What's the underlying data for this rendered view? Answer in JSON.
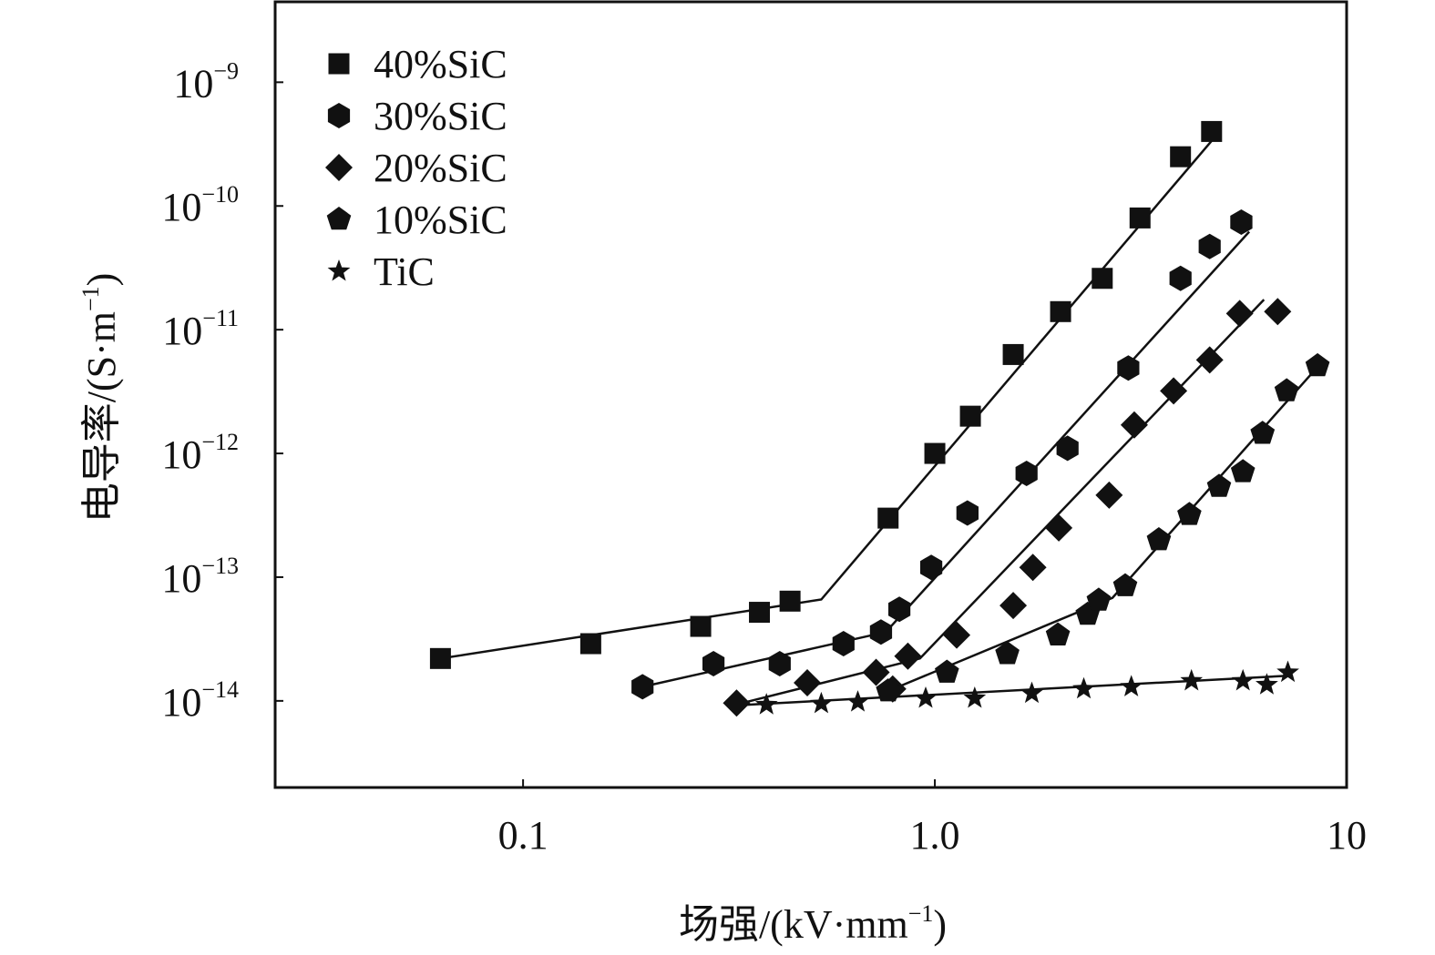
{
  "chart_data": {
    "type": "scatter",
    "x_scale": "log",
    "y_scale": "log",
    "xlim": [
      0.025,
      10
    ],
    "ylim_log10": [
      -14.7,
      -8.35
    ],
    "xlabel": {
      "base": "场强/(kV·mm",
      "exp": "−1",
      "close": ")"
    },
    "ylabel": {
      "base": "电导率/(S·m",
      "exp": "−1",
      "close": ")"
    },
    "x_ticks": [
      {
        "value": 0.1,
        "label": "0.1"
      },
      {
        "value": 1.0,
        "label": "1.0"
      },
      {
        "value": 10,
        "label": "10"
      }
    ],
    "y_ticks": [
      {
        "value_log10": -9,
        "base": "10",
        "exp": "−9"
      },
      {
        "value_log10": -10,
        "base": "10",
        "exp": "−10"
      },
      {
        "value_log10": -11,
        "base": "10",
        "exp": "−11"
      },
      {
        "value_log10": -12,
        "base": "10",
        "exp": "−12"
      },
      {
        "value_log10": -13,
        "base": "10",
        "exp": "−13"
      },
      {
        "value_log10": -14,
        "base": "10",
        "exp": "−14"
      }
    ],
    "legend_position": "top-left",
    "series": [
      {
        "name": "40%SiC",
        "marker": "square",
        "points": [
          [
            0.063,
            2.2e-14
          ],
          [
            0.146,
            2.9e-14
          ],
          [
            0.27,
            4e-14
          ],
          [
            0.375,
            5.2e-14
          ],
          [
            0.445,
            6.4e-14
          ],
          [
            0.77,
            3e-13
          ],
          [
            1.0,
            1e-12
          ],
          [
            1.22,
            2e-12
          ],
          [
            1.55,
            6.3e-12
          ],
          [
            2.02,
            1.4e-11
          ],
          [
            2.55,
            2.6e-11
          ],
          [
            3.15,
            8e-11
          ],
          [
            3.95,
            2.5e-10
          ],
          [
            4.7,
            4e-10
          ]
        ],
        "fit": [
          [
            0.063,
            2.2e-14
          ],
          [
            0.53,
            6.6e-14
          ],
          [
            4.75,
            3.5e-10
          ]
        ]
      },
      {
        "name": "30%SiC",
        "marker": "hexagon",
        "points": [
          [
            0.195,
            1.3e-14
          ],
          [
            0.29,
            2e-14
          ],
          [
            0.42,
            2e-14
          ],
          [
            0.6,
            2.9e-14
          ],
          [
            0.74,
            3.6e-14
          ],
          [
            0.82,
            5.5e-14
          ],
          [
            0.98,
            1.2e-13
          ],
          [
            1.2,
            3.3e-13
          ],
          [
            1.67,
            6.9e-13
          ],
          [
            2.1,
            1.1e-12
          ],
          [
            2.95,
            4.9e-12
          ],
          [
            3.95,
            2.6e-11
          ],
          [
            4.65,
            4.7e-11
          ],
          [
            5.55,
            7.4e-11
          ]
        ],
        "fit": [
          [
            0.195,
            1.3e-14
          ],
          [
            0.76,
            3.6e-14
          ],
          [
            5.8,
            6.2e-11
          ]
        ]
      },
      {
        "name": "20%SiC",
        "marker": "diamond",
        "points": [
          [
            0.33,
            9.6e-15
          ],
          [
            0.49,
            1.4e-14
          ],
          [
            0.72,
            1.7e-14
          ],
          [
            0.79,
            1.25e-14
          ],
          [
            0.86,
            2.3e-14
          ],
          [
            1.13,
            3.4e-14
          ],
          [
            1.55,
            5.9e-14
          ],
          [
            1.73,
            1.2e-13
          ],
          [
            2.0,
            2.5e-13
          ],
          [
            2.65,
            4.6e-13
          ],
          [
            3.05,
            1.7e-12
          ],
          [
            3.8,
            3.2e-12
          ],
          [
            4.65,
            5.7e-12
          ],
          [
            5.5,
            1.35e-11
          ],
          [
            6.8,
            1.4e-11
          ]
        ],
        "fit": [
          [
            0.34,
            9.6e-15
          ],
          [
            0.92,
            2.2e-14
          ],
          [
            6.3,
            1.75e-11
          ]
        ]
      },
      {
        "name": "10%SiC",
        "marker": "pentagon",
        "points": [
          [
            0.77,
            1.2e-14
          ],
          [
            1.07,
            1.7e-14
          ],
          [
            1.5,
            2.4e-14
          ],
          [
            1.99,
            3.4e-14
          ],
          [
            2.35,
            5e-14
          ],
          [
            2.5,
            6.5e-14
          ],
          [
            2.9,
            8.5e-14
          ],
          [
            3.5,
            2e-13
          ],
          [
            4.15,
            3.2e-13
          ],
          [
            4.9,
            5.4e-13
          ],
          [
            5.6,
            7.1e-13
          ],
          [
            6.25,
            1.45e-12
          ],
          [
            7.15,
            3.2e-12
          ],
          [
            8.5,
            5.1e-12
          ]
        ],
        "fit": [
          [
            0.77,
            1.2e-14
          ],
          [
            2.7,
            6.8e-14
          ],
          [
            8.5,
            5e-12
          ]
        ]
      },
      {
        "name": "TiC",
        "marker": "star",
        "points": [
          [
            0.39,
            9.3e-15
          ],
          [
            0.53,
            9.5e-15
          ],
          [
            0.65,
            9.8e-15
          ],
          [
            0.95,
            1.05e-14
          ],
          [
            1.25,
            1.05e-14
          ],
          [
            1.72,
            1.15e-14
          ],
          [
            2.3,
            1.25e-14
          ],
          [
            3.0,
            1.3e-14
          ],
          [
            4.2,
            1.45e-14
          ],
          [
            5.6,
            1.45e-14
          ],
          [
            6.4,
            1.35e-14
          ],
          [
            7.2,
            1.7e-14
          ]
        ],
        "fit": [
          [
            0.35,
            9.3e-15
          ],
          [
            7.3,
            1.6e-14
          ]
        ]
      }
    ]
  }
}
